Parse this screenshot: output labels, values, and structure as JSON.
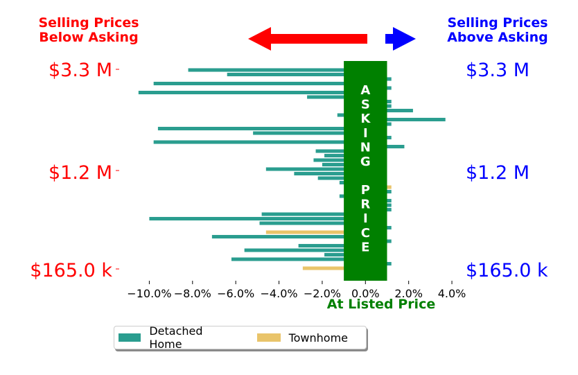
{
  "chart_data": {
    "type": "bar",
    "orientation": "horizontal",
    "header_left": [
      "Selling Prices",
      "Below Asking"
    ],
    "header_right": [
      "Selling Prices",
      "Above Asking"
    ],
    "y_tick_labels": [
      "$3.3 M",
      "$1.2 M",
      "$165.0 k"
    ],
    "x_ticks": [
      -10,
      -8,
      -6,
      -4,
      -2,
      0,
      2,
      4
    ],
    "x_tick_labels": [
      "−10.0%",
      "−8.0%",
      "−6.0%",
      "−4.0%",
      "−2.0%",
      "0.0%",
      "2.0%",
      "4.0%"
    ],
    "xlim": [
      -11.2,
      4.8
    ],
    "band_range": [
      -1,
      1
    ],
    "band_letters_top": [
      "A",
      "S",
      "K",
      "I",
      "N",
      "G"
    ],
    "band_letters_bottom": [
      "P",
      "R",
      "I",
      "C",
      "E"
    ],
    "xlabel": "At Listed Price",
    "colors": {
      "detached": "#2a9d8f",
      "townhome": "#e9c46a",
      "band": "#008000",
      "below": "#ff0000",
      "above": "#0000ff",
      "listed": "#008000"
    },
    "legend": [
      "Detached Home",
      "Townhome"
    ],
    "bars": [
      {
        "type": "Detached Home",
        "value": -8.2
      },
      {
        "type": "Detached Home",
        "value": -6.4
      },
      {
        "type": "Detached Home",
        "value": 1.2
      },
      {
        "type": "Detached Home",
        "value": -9.8
      },
      {
        "type": "Detached Home",
        "value": 1.2
      },
      {
        "type": "Detached Home",
        "value": -10.5
      },
      {
        "type": "Detached Home",
        "value": -2.7
      },
      {
        "type": "Detached Home",
        "value": 1.2
      },
      {
        "type": "Detached Home",
        "value": 1.2
      },
      {
        "type": "Detached Home",
        "value": 2.2
      },
      {
        "type": "Detached Home",
        "value": -1.3
      },
      {
        "type": "Detached Home",
        "value": 3.7
      },
      {
        "type": "Detached Home",
        "value": 1.2
      },
      {
        "type": "Detached Home",
        "value": -9.6
      },
      {
        "type": "Detached Home",
        "value": -5.2
      },
      {
        "type": "Detached Home",
        "value": 1.2
      },
      {
        "type": "Detached Home",
        "value": -9.8
      },
      {
        "type": "Detached Home",
        "value": 1.8
      },
      {
        "type": "Detached Home",
        "value": -2.3
      },
      {
        "type": "Detached Home",
        "value": -1.9
      },
      {
        "type": "Detached Home",
        "value": -2.4
      },
      {
        "type": "Detached Home",
        "value": -2.0
      },
      {
        "type": "Detached Home",
        "value": -4.6
      },
      {
        "type": "Detached Home",
        "value": -3.3
      },
      {
        "type": "Detached Home",
        "value": -2.2
      },
      {
        "type": "Detached Home",
        "value": -1.2
      },
      {
        "type": "Townhome",
        "value": 1.2
      },
      {
        "type": "Detached Home",
        "value": 1.2
      },
      {
        "type": "Detached Home",
        "value": -1.2
      },
      {
        "type": "Detached Home",
        "value": 1.2
      },
      {
        "type": "Detached Home",
        "value": 1.2
      },
      {
        "type": "Detached Home",
        "value": 1.2
      },
      {
        "type": "Detached Home",
        "value": -4.8
      },
      {
        "type": "Detached Home",
        "value": -10.0
      },
      {
        "type": "Detached Home",
        "value": -4.9
      },
      {
        "type": "Detached Home",
        "value": 1.2
      },
      {
        "type": "Townhome",
        "value": -4.6
      },
      {
        "type": "Detached Home",
        "value": -7.1
      },
      {
        "type": "Detached Home",
        "value": 1.2
      },
      {
        "type": "Detached Home",
        "value": -3.1
      },
      {
        "type": "Detached Home",
        "value": -5.6
      },
      {
        "type": "Detached Home",
        "value": -1.9
      },
      {
        "type": "Detached Home",
        "value": -6.2
      },
      {
        "type": "Detached Home",
        "value": 1.2
      },
      {
        "type": "Townhome",
        "value": -2.9
      }
    ]
  }
}
